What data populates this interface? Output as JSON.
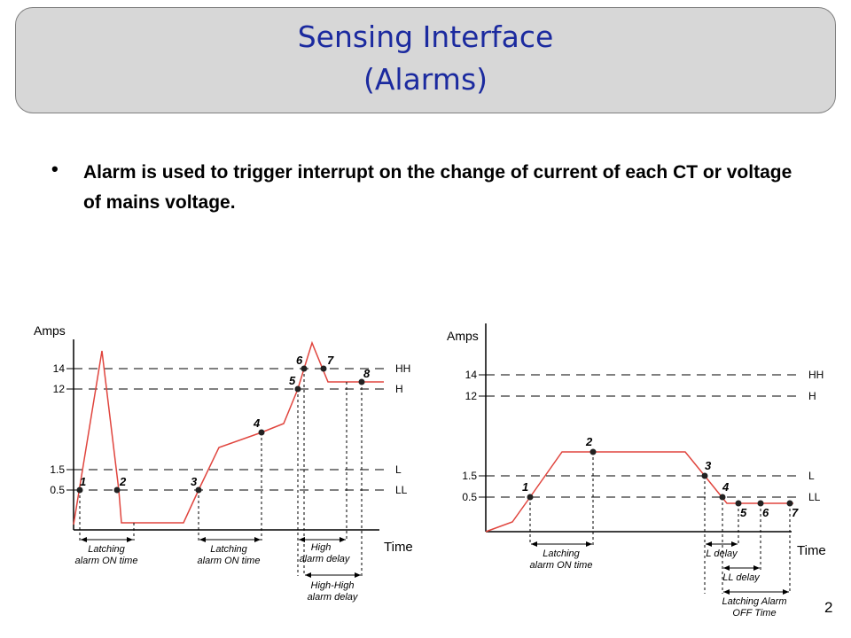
{
  "slide": {
    "title_line1": "Sensing Interface",
    "title_line2": "(Alarms)",
    "bullet": "Alarm is used to trigger interrupt on the change of current of each CT or voltage of mains voltage.",
    "page_number": "2"
  },
  "colors": {
    "title_text": "#1b2a9f",
    "title_box": "#d7d7d7",
    "signal_line": "#e0453e"
  },
  "diagram_left": {
    "y_axis_label": "Amps",
    "x_axis_label": "Time",
    "levels": [
      {
        "tick": "14",
        "name": "HH"
      },
      {
        "tick": "12",
        "name": "H"
      },
      {
        "tick": "1.5",
        "name": "L"
      },
      {
        "tick": "0.5",
        "name": "LL"
      }
    ],
    "points": [
      "1",
      "2",
      "3",
      "4",
      "5",
      "6",
      "7",
      "8"
    ],
    "spans": [
      {
        "line1": "Latching",
        "line2": "alarm ON time"
      },
      {
        "line1": "Latching",
        "line2": "alarm ON time"
      },
      {
        "line1": "High",
        "line2": "alarm delay"
      },
      {
        "line1": "High-High",
        "line2": "alarm delay"
      }
    ]
  },
  "diagram_right": {
    "y_axis_label": "Amps",
    "x_axis_label": "Time",
    "levels": [
      {
        "tick": "14",
        "name": "HH"
      },
      {
        "tick": "12",
        "name": "H"
      },
      {
        "tick": "1.5",
        "name": "L"
      },
      {
        "tick": "0.5",
        "name": "LL"
      }
    ],
    "points": [
      "1",
      "2",
      "3",
      "4",
      "5",
      "6",
      "7"
    ],
    "spans": [
      {
        "line1": "Latching",
        "line2": "alarm ON time"
      },
      {
        "line1": "L delay",
        "line2": ""
      },
      {
        "line1": "LL delay",
        "line2": ""
      },
      {
        "line1": "Latching Alarm",
        "line2": "OFF Time"
      }
    ]
  }
}
